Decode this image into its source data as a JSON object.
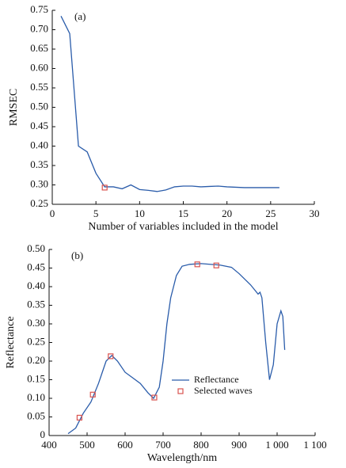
{
  "chart_data": [
    {
      "type": "line",
      "annotation": "(a)",
      "x_label": "Number of variables included in the model",
      "y_label": "RMSEC",
      "x": [
        1,
        2,
        3,
        4,
        5,
        6,
        7,
        8,
        9,
        10,
        11,
        12,
        13,
        14,
        15,
        16,
        17,
        18,
        19,
        20,
        21,
        22,
        23,
        24,
        25,
        26
      ],
      "values": [
        0.735,
        0.69,
        0.4,
        0.385,
        0.33,
        0.295,
        0.295,
        0.29,
        0.3,
        0.288,
        0.286,
        0.283,
        0.287,
        0.295,
        0.297,
        0.297,
        0.295,
        0.296,
        0.297,
        0.295,
        0.294,
        0.293,
        0.293,
        0.293,
        0.293,
        0.293
      ],
      "color": "#2a5caa",
      "point": {
        "x": 6,
        "y": 0.293,
        "color": "#d9534f"
      },
      "xlim": [
        0,
        30
      ],
      "xticks": [
        0,
        5,
        10,
        15,
        20,
        25,
        30
      ],
      "ylim": [
        0.25,
        0.75
      ],
      "yticks": [
        0.25,
        {
          "value": 0.3,
          "label": "0.30"
        },
        0.35,
        {
          "value": 0.4,
          "label": "0.40"
        },
        0.45,
        {
          "value": 0.5,
          "label": "0.50"
        },
        0.55,
        {
          "value": 0.6,
          "label": "0.60"
        },
        0.65,
        {
          "value": 0.7,
          "label": "0.70"
        },
        0.75
      ]
    },
    {
      "type": "line",
      "annotation": "(b)",
      "x_label": "Wavelength/nm",
      "y_label": "Reflectance",
      "series": [
        {
          "name": "Reflectance",
          "color": "#2a5caa",
          "marker": "line",
          "x": [
            450,
            470,
            490,
            510,
            530,
            550,
            565,
            580,
            600,
            620,
            640,
            660,
            675,
            690,
            700,
            710,
            720,
            735,
            750,
            770,
            800,
            850,
            880,
            900,
            930,
            950,
            955,
            960,
            970,
            980,
            990,
            1000,
            1010,
            1015,
            1020
          ],
          "values": [
            0.005,
            0.02,
            0.06,
            0.09,
            0.14,
            0.2,
            0.215,
            0.2,
            0.17,
            0.155,
            0.14,
            0.115,
            0.1,
            0.13,
            0.2,
            0.3,
            0.37,
            0.43,
            0.455,
            0.46,
            0.462,
            0.458,
            0.452,
            0.435,
            0.405,
            0.38,
            0.385,
            0.37,
            0.25,
            0.15,
            0.19,
            0.3,
            0.335,
            0.32,
            0.23
          ]
        },
        {
          "name": "Selected waves",
          "color": "#d9534f",
          "marker": "square",
          "x": [
            480,
            515,
            562,
            677,
            790,
            840
          ],
          "values": [
            0.048,
            0.11,
            0.213,
            0.102,
            0.46,
            0.457
          ]
        }
      ],
      "xlim": [
        400,
        1100
      ],
      "xticks": [
        400,
        500,
        600,
        700,
        800,
        900,
        {
          "value": 1000,
          "label": "1 000"
        },
        {
          "value": 1100,
          "label": "1 100"
        }
      ],
      "ylim": [
        0,
        0.5
      ],
      "yticks": [
        0,
        0.05,
        {
          "value": 0.1,
          "label": "0.10"
        },
        0.15,
        {
          "value": 0.2,
          "label": "0.20"
        },
        0.25,
        {
          "value": 0.3,
          "label": "0.30"
        },
        0.35,
        {
          "value": 0.4,
          "label": "0.40"
        },
        0.45,
        {
          "value": 0.5,
          "label": "0.50"
        }
      ]
    }
  ]
}
